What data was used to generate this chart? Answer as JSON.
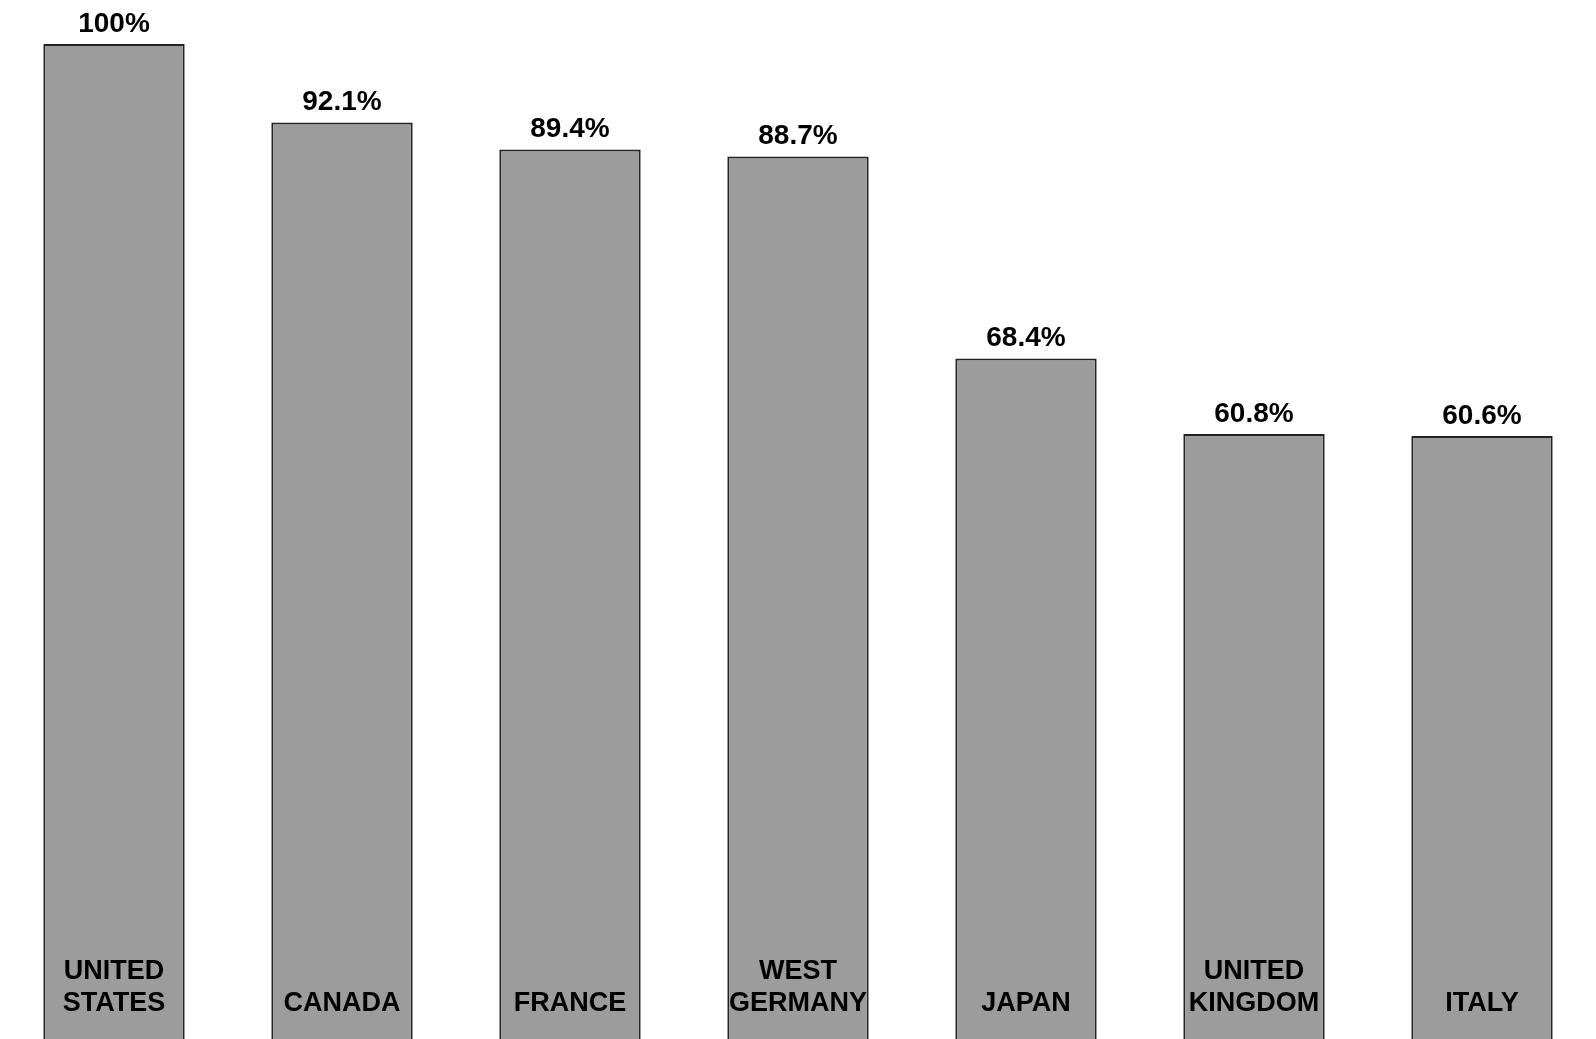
{
  "chart_data": {
    "type": "bar",
    "categories": [
      "UNITED STATES",
      "CANADA",
      "FRANCE",
      "WEST GERMANY",
      "JAPAN",
      "UNITED KINGDOM",
      "ITALY"
    ],
    "values": [
      100,
      92.1,
      89.4,
      88.7,
      68.4,
      60.8,
      60.6
    ],
    "value_labels": [
      "100%",
      "92.1%",
      "89.4%",
      "88.7%",
      "68.4%",
      "60.8%",
      "60.6%"
    ],
    "color": "#9c9c9c",
    "legend": false,
    "tick_labels": false
  }
}
